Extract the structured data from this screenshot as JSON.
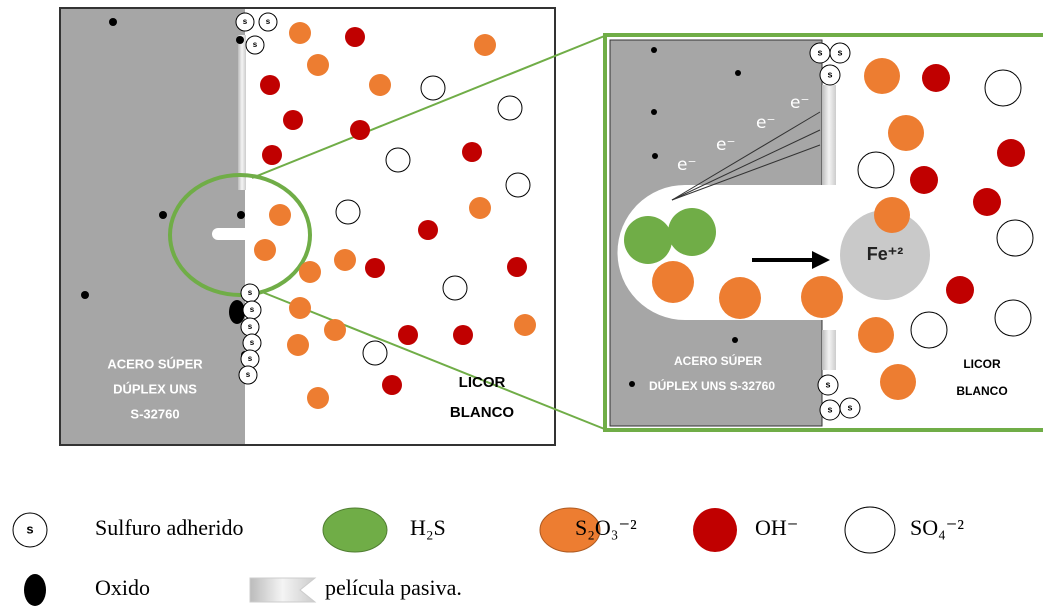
{
  "left_panel": {
    "steel_label": [
      "ACERO SÚPER",
      "DÚPLEX UNS",
      "S-32760"
    ],
    "liquor_label": [
      "LICOR",
      "BLANCO"
    ]
  },
  "zoom_panel": {
    "steel_label": [
      "ACERO SÚPER",
      "DÚPLEX UNS S-32760"
    ],
    "liquor_label": [
      "LICOR",
      "BLANCO"
    ],
    "electron": "e⁻",
    "ion": "Fe⁺²"
  },
  "sulfide_symbol": "s",
  "legend": [
    {
      "label": "Sulfuro adherido"
    },
    {
      "label": "H₂S"
    },
    {
      "label": "S₂O₃⁻²"
    },
    {
      "label": "OH⁻"
    },
    {
      "label": "SO₄⁻²"
    },
    {
      "label": "Oxido"
    },
    {
      "label": "película pasiva."
    }
  ]
}
